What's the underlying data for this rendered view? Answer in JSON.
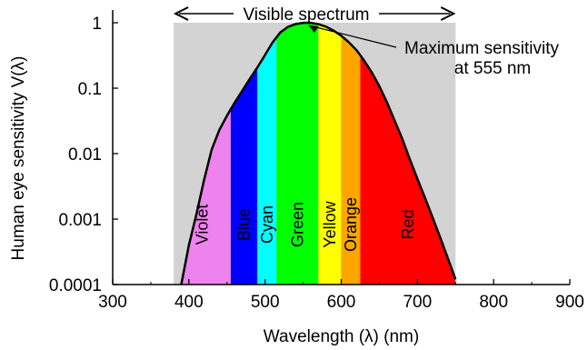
{
  "chart_data": {
    "type": "area",
    "xlabel": "Wavelength (λ) (nm)",
    "ylabel": "Human eye sensitivity V(λ)",
    "xlim": [
      300,
      900
    ],
    "ylim": [
      0.0001,
      1
    ],
    "yscale": "log",
    "grid": false,
    "x_ticks": [
      300,
      400,
      500,
      600,
      700,
      800,
      900
    ],
    "x_tick_labels": [
      "300",
      "400",
      "500",
      "600",
      "700",
      "800",
      "900"
    ],
    "y_ticks": [
      1,
      0.1,
      0.01,
      0.001,
      0.0001
    ],
    "y_tick_labels": [
      "1",
      "0.1",
      "0.01",
      "0.001",
      "0.0001"
    ],
    "visible_range": {
      "label": "Visible spectrum",
      "x": [
        380,
        750
      ],
      "color": "#d3d3d3"
    },
    "bands": [
      {
        "name": "Violet",
        "x": [
          380,
          455
        ],
        "color": "#ee82ee"
      },
      {
        "name": "Blue",
        "x": [
          455,
          490
        ],
        "color": "#0000ff"
      },
      {
        "name": "Cyan",
        "x": [
          490,
          515
        ],
        "color": "#00ffff"
      },
      {
        "name": "Green",
        "x": [
          515,
          570
        ],
        "color": "#00ff00"
      },
      {
        "name": "Yellow",
        "x": [
          570,
          600
        ],
        "color": "#ffff00"
      },
      {
        "name": "Orange",
        "x": [
          600,
          625
        ],
        "color": "#ffa500"
      },
      {
        "name": "Red",
        "x": [
          625,
          750
        ],
        "color": "#ff0000"
      }
    ],
    "series": [
      {
        "x": [
          390,
          400,
          410,
          420,
          430,
          440,
          450,
          460,
          470,
          480,
          490,
          500,
          510,
          520,
          530,
          540,
          550,
          555,
          560,
          570,
          580,
          590,
          600,
          610,
          620,
          630,
          640,
          650,
          660,
          670,
          680,
          690,
          700,
          710,
          720,
          730,
          740,
          750
        ],
        "y": [
          0.0001,
          0.0004,
          0.0012,
          0.004,
          0.0116,
          0.023,
          0.038,
          0.06,
          0.091,
          0.139,
          0.208,
          0.323,
          0.503,
          0.71,
          0.862,
          0.954,
          0.995,
          1.0,
          0.995,
          0.952,
          0.87,
          0.757,
          0.631,
          0.503,
          0.381,
          0.265,
          0.175,
          0.107,
          0.061,
          0.032,
          0.017,
          0.0082,
          0.0041,
          0.0021,
          0.00105,
          0.00052,
          0.00025,
          0.00012
        ]
      }
    ],
    "annotation": {
      "text_line1": "Maximum sensitivity",
      "text_line2": "at 555 nm",
      "x": 555,
      "y": 1
    }
  }
}
